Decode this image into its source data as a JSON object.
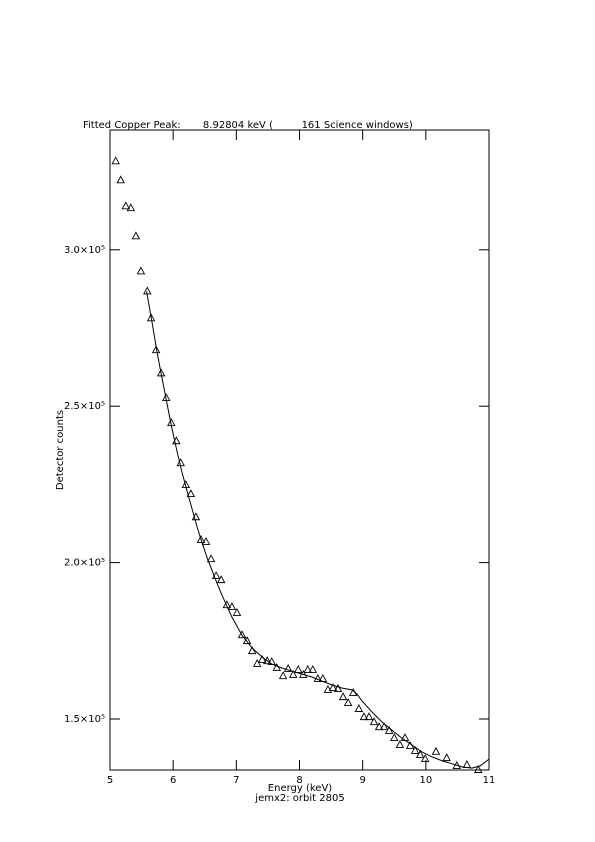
{
  "chart_data": {
    "type": "scatter",
    "title": "Fitted Copper Peak:       8.92804 keV (         161 Science windows)",
    "x_label": "Energy (keV)",
    "y_label": "Detector counts",
    "subtitle": "jemx2: orbit 2805",
    "xlim": [
      5,
      11
    ],
    "xticks": [
      5,
      6,
      7,
      8,
      9,
      10,
      11
    ],
    "ylim": [
      133700,
      338300
    ],
    "yticks": [
      {
        "value": 150000,
        "label": "1.5×10⁵"
      },
      {
        "value": 200000,
        "label": "2.0×10⁵"
      },
      {
        "value": 250000,
        "label": "2.5×10⁵"
      },
      {
        "value": 300000,
        "label": "3.0×10⁵"
      }
    ],
    "series": [
      {
        "style": "markers",
        "marker": "triangle",
        "color": "#000000",
        "x": [
          5.09,
          5.17,
          5.25,
          5.33,
          5.41,
          5.49,
          5.59,
          5.65,
          5.73,
          5.81,
          5.89,
          5.97,
          6.05,
          6.12,
          6.2,
          6.28,
          6.36,
          6.44,
          6.52,
          6.6,
          6.68,
          6.76,
          6.85,
          6.93,
          7.01,
          7.09,
          7.17,
          7.25,
          7.33,
          7.41,
          7.49,
          7.56,
          7.64,
          7.74,
          7.82,
          7.9,
          7.98,
          8.06,
          8.13,
          8.21,
          8.29,
          8.37,
          8.45,
          8.53,
          8.61,
          8.69,
          8.77,
          8.85,
          8.94,
          9.02,
          9.1,
          9.18,
          9.26,
          9.34,
          9.42,
          9.5,
          9.59,
          9.67,
          9.75,
          9.83,
          9.91,
          9.99,
          10.16,
          10.33,
          10.49,
          10.65,
          10.83
        ],
        "values": [
          328300,
          322200,
          313900,
          313300,
          304300,
          293100,
          286700,
          278100,
          267900,
          260500,
          252600,
          244600,
          238800,
          231800,
          224800,
          221900,
          214500,
          207200,
          206600,
          201100,
          195700,
          194400,
          186400,
          185800,
          183900,
          176800,
          174900,
          171700,
          167600,
          168900,
          168500,
          168200,
          166300,
          163700,
          166000,
          164100,
          165700,
          164100,
          165700,
          165700,
          162800,
          162800,
          159300,
          159900,
          159600,
          157000,
          155100,
          158300,
          153200,
          150600,
          150600,
          149000,
          147400,
          147400,
          146200,
          143900,
          141700,
          143900,
          141400,
          139800,
          138500,
          137200,
          139500,
          137500,
          135000,
          135300,
          133700
        ]
      },
      {
        "style": "line",
        "color": "#000000",
        "x": [
          5.58,
          5.66,
          5.74,
          5.82,
          5.9,
          5.98,
          6.06,
          6.14,
          6.22,
          6.3,
          6.38,
          6.46,
          6.54,
          6.62,
          6.7,
          6.78,
          6.93,
          7.09,
          7.25,
          7.41,
          7.56,
          7.72,
          7.88,
          8.04,
          8.2,
          8.36,
          8.51,
          8.67,
          8.83,
          8.91,
          8.99,
          9.15,
          9.31,
          9.46,
          9.62,
          9.78,
          9.94,
          10.1,
          10.26,
          10.41,
          10.57,
          10.73,
          10.86,
          11.0
        ],
        "values": [
          286700,
          277500,
          267900,
          259300,
          251000,
          243000,
          235600,
          228900,
          222800,
          217100,
          211300,
          206200,
          201400,
          197300,
          193100,
          189300,
          182600,
          176800,
          172700,
          169800,
          167600,
          166300,
          165300,
          164400,
          163400,
          162100,
          160900,
          159900,
          159300,
          158000,
          155800,
          152200,
          149000,
          146500,
          143900,
          141700,
          139500,
          137900,
          136600,
          135700,
          134700,
          134300,
          135000,
          137200
        ]
      }
    ]
  }
}
